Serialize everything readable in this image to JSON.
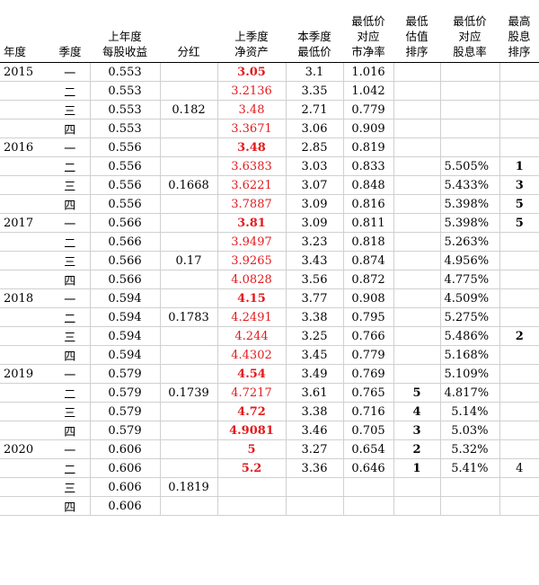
{
  "headers": [
    "年度",
    "季度",
    "上年度\n每股收益",
    "分红",
    "上季度\n净资产",
    "本季度\n最低价",
    "最低价\n对应\n市净率",
    "最低\n估值\n排序",
    "最低价\n对应\n股息率",
    "最高\n股息\n排序"
  ],
  "rows": [
    {
      "year": "2015",
      "quarter": "一",
      "eps": "0.553",
      "div": "",
      "nav": "3.05",
      "nav_red": true,
      "nav_bold": true,
      "low": "3.1",
      "pb": "1.016",
      "rank": "",
      "yield": "",
      "yrank": "",
      "yrank_bold": true
    },
    {
      "year": "",
      "quarter": "二",
      "eps": "0.553",
      "div": "",
      "nav": "3.2136",
      "nav_red": true,
      "nav_bold": false,
      "low": "3.35",
      "pb": "1.042",
      "rank": "",
      "yield": "",
      "yrank": "",
      "yrank_bold": true
    },
    {
      "year": "",
      "quarter": "三",
      "eps": "0.553",
      "div": "0.182",
      "nav": "3.48",
      "nav_red": true,
      "nav_bold": false,
      "low": "2.71",
      "pb": "0.779",
      "rank": "",
      "yield": "",
      "yrank": "",
      "yrank_bold": true
    },
    {
      "year": "",
      "quarter": "四",
      "eps": "0.553",
      "div": "",
      "nav": "3.3671",
      "nav_red": true,
      "nav_bold": false,
      "low": "3.06",
      "pb": "0.909",
      "rank": "",
      "yield": "",
      "yrank": "",
      "yrank_bold": true
    },
    {
      "year": "2016",
      "quarter": "一",
      "eps": "0.556",
      "div": "",
      "nav": "3.48",
      "nav_red": true,
      "nav_bold": true,
      "low": "2.85",
      "pb": "0.819",
      "rank": "",
      "yield": "",
      "yrank": "",
      "yrank_bold": true
    },
    {
      "year": "",
      "quarter": "二",
      "eps": "0.556",
      "div": "",
      "nav": "3.6383",
      "nav_red": true,
      "nav_bold": false,
      "low": "3.03",
      "pb": "0.833",
      "rank": "",
      "yield": "5.505%",
      "yrank": "1",
      "yrank_bold": true
    },
    {
      "year": "",
      "quarter": "三",
      "eps": "0.556",
      "div": "0.1668",
      "nav": "3.6221",
      "nav_red": true,
      "nav_bold": false,
      "low": "3.07",
      "pb": "0.848",
      "rank": "",
      "yield": "5.433%",
      "yrank": "3",
      "yrank_bold": true
    },
    {
      "year": "",
      "quarter": "四",
      "eps": "0.556",
      "div": "",
      "nav": "3.7887",
      "nav_red": true,
      "nav_bold": false,
      "low": "3.09",
      "pb": "0.816",
      "rank": "",
      "yield": "5.398%",
      "yrank": "5",
      "yrank_bold": true
    },
    {
      "year": "2017",
      "quarter": "一",
      "eps": "0.566",
      "div": "",
      "nav": "3.81",
      "nav_red": true,
      "nav_bold": true,
      "low": "3.09",
      "pb": "0.811",
      "rank": "",
      "yield": "5.398%",
      "yrank": "5",
      "yrank_bold": true
    },
    {
      "year": "",
      "quarter": "二",
      "eps": "0.566",
      "div": "",
      "nav": "3.9497",
      "nav_red": true,
      "nav_bold": false,
      "low": "3.23",
      "pb": "0.818",
      "rank": "",
      "yield": "5.263%",
      "yrank": "",
      "yrank_bold": true
    },
    {
      "year": "",
      "quarter": "三",
      "eps": "0.566",
      "div": "0.17",
      "nav": "3.9265",
      "nav_red": true,
      "nav_bold": false,
      "low": "3.43",
      "pb": "0.874",
      "rank": "",
      "yield": "4.956%",
      "yrank": "",
      "yrank_bold": true
    },
    {
      "year": "",
      "quarter": "四",
      "eps": "0.566",
      "div": "",
      "nav": "4.0828",
      "nav_red": true,
      "nav_bold": false,
      "low": "3.56",
      "pb": "0.872",
      "rank": "",
      "yield": "4.775%",
      "yrank": "",
      "yrank_bold": true
    },
    {
      "year": "2018",
      "quarter": "一",
      "eps": "0.594",
      "div": "",
      "nav": "4.15",
      "nav_red": true,
      "nav_bold": true,
      "low": "3.77",
      "pb": "0.908",
      "rank": "",
      "yield": "4.509%",
      "yrank": "",
      "yrank_bold": true
    },
    {
      "year": "",
      "quarter": "二",
      "eps": "0.594",
      "div": "0.1783",
      "nav": "4.2491",
      "nav_red": true,
      "nav_bold": false,
      "low": "3.38",
      "pb": "0.795",
      "rank": "",
      "yield": "5.275%",
      "yrank": "",
      "yrank_bold": true
    },
    {
      "year": "",
      "quarter": "三",
      "eps": "0.594",
      "div": "",
      "nav": "4.244",
      "nav_red": true,
      "nav_bold": false,
      "low": "3.25",
      "pb": "0.766",
      "rank": "",
      "yield": "5.486%",
      "yrank": "2",
      "yrank_bold": true
    },
    {
      "year": "",
      "quarter": "四",
      "eps": "0.594",
      "div": "",
      "nav": "4.4302",
      "nav_red": true,
      "nav_bold": false,
      "low": "3.45",
      "pb": "0.779",
      "rank": "",
      "yield": "5.168%",
      "yrank": "",
      "yrank_bold": true
    },
    {
      "year": "2019",
      "quarter": "一",
      "eps": "0.579",
      "div": "",
      "nav": "4.54",
      "nav_red": true,
      "nav_bold": true,
      "low": "3.49",
      "pb": "0.769",
      "rank": "",
      "yield": "5.109%",
      "yrank": "",
      "yrank_bold": true
    },
    {
      "year": "",
      "quarter": "二",
      "eps": "0.579",
      "div": "0.1739",
      "nav": "4.7217",
      "nav_red": true,
      "nav_bold": false,
      "low": "3.61",
      "pb": "0.765",
      "rank": "5",
      "yield": "4.817%",
      "yrank": "",
      "yrank_bold": true
    },
    {
      "year": "",
      "quarter": "三",
      "eps": "0.579",
      "div": "",
      "nav": "4.72",
      "nav_red": true,
      "nav_bold": true,
      "low": "3.38",
      "pb": "0.716",
      "rank": "4",
      "yield": "5.14%",
      "yrank": "",
      "yrank_bold": true
    },
    {
      "year": "",
      "quarter": "四",
      "eps": "0.579",
      "div": "",
      "nav": "4.9081",
      "nav_red": true,
      "nav_bold": true,
      "low": "3.46",
      "pb": "0.705",
      "rank": "3",
      "yield": "5.03%",
      "yrank": "",
      "yrank_bold": true
    },
    {
      "year": "2020",
      "quarter": "一",
      "eps": "0.606",
      "div": "",
      "nav": "5",
      "nav_red": true,
      "nav_bold": true,
      "low": "3.27",
      "pb": "0.654",
      "rank": "2",
      "yield": "5.32%",
      "yrank": "",
      "yrank_bold": true
    },
    {
      "year": "",
      "quarter": "二",
      "eps": "0.606",
      "div": "",
      "nav": "5.2",
      "nav_red": true,
      "nav_bold": true,
      "low": "3.36",
      "pb": "0.646",
      "rank": "1",
      "yield": "5.41%",
      "yrank": "4",
      "yrank_bold": false
    },
    {
      "year": "",
      "quarter": "三",
      "eps": "0.606",
      "div": "0.1819",
      "nav": "",
      "nav_red": true,
      "nav_bold": false,
      "low": "",
      "pb": "",
      "rank": "",
      "yield": "",
      "yrank": "",
      "yrank_bold": true
    },
    {
      "year": "",
      "quarter": "四",
      "eps": "0.606",
      "div": "",
      "nav": "",
      "nav_red": true,
      "nav_bold": false,
      "low": "",
      "pb": "",
      "rank": "",
      "yield": "",
      "yrank": "",
      "yrank_bold": true
    }
  ]
}
